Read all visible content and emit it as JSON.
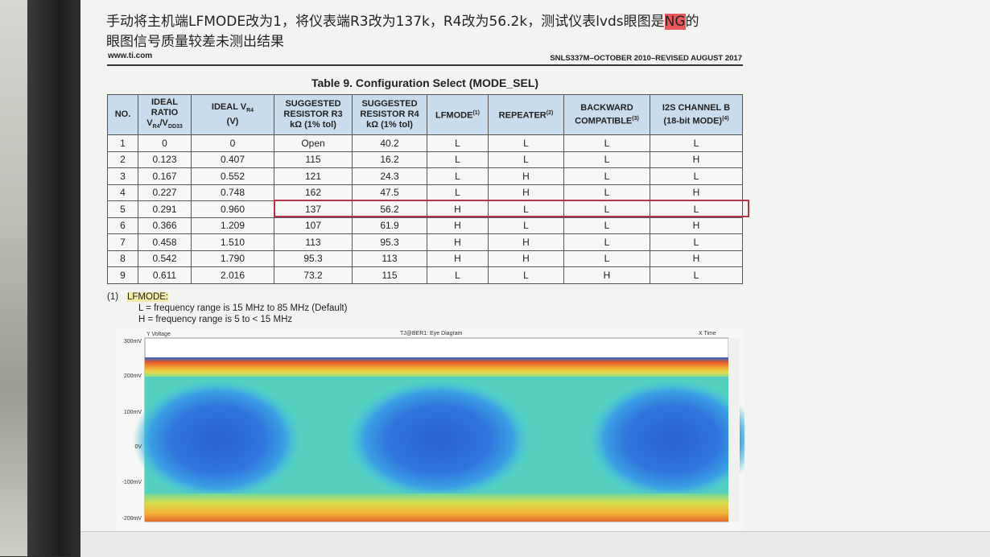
{
  "note": {
    "line1_a": "手动将主机端LFMODE改为1，将仪表端R3改为137k，R4改为56.2k，测试仪表lvds眼图是",
    "line1_ng": "NG",
    "line1_b": "的",
    "line2": "眼图信号质量较差未测出结果"
  },
  "header": {
    "left": "www.ti.com",
    "right": "SNLS337M–OCTOBER 2010–REVISED AUGUST 2017"
  },
  "table": {
    "title": "Table 9.  Configuration Select (MODE_SEL)",
    "headers": [
      [
        "NO."
      ],
      [
        "IDEAL",
        "RATIO",
        "V",
        "R4",
        "/V",
        "DD33"
      ],
      [
        "IDEAL V",
        "R4",
        "(V)"
      ],
      [
        "SUGGESTED",
        "RESISTOR R3",
        "kΩ (1% tol)"
      ],
      [
        "SUGGESTED",
        "RESISTOR R4",
        "kΩ (1% tol)"
      ],
      [
        "LFMODE",
        "(1)"
      ],
      [
        "REPEATER",
        "(2)"
      ],
      [
        "BACKWARD",
        "COMPATIBLE",
        "(3)"
      ],
      [
        "I2S CHANNEL B",
        "(18-bit MODE)",
        "(4)"
      ]
    ],
    "rows": [
      [
        "1",
        "0",
        "0",
        "Open",
        "40.2",
        "L",
        "L",
        "L",
        "L"
      ],
      [
        "2",
        "0.123",
        "0.407",
        "115",
        "16.2",
        "L",
        "L",
        "L",
        "H"
      ],
      [
        "3",
        "0.167",
        "0.552",
        "121",
        "24.3",
        "L",
        "H",
        "L",
        "L"
      ],
      [
        "4",
        "0.227",
        "0.748",
        "162",
        "47.5",
        "L",
        "H",
        "L",
        "H"
      ],
      [
        "5",
        "0.291",
        "0.960",
        "137",
        "56.2",
        "H",
        "L",
        "L",
        "L"
      ],
      [
        "6",
        "0.366",
        "1.209",
        "107",
        "61.9",
        "H",
        "L",
        "L",
        "H"
      ],
      [
        "7",
        "0.458",
        "1.510",
        "113",
        "95.3",
        "H",
        "H",
        "L",
        "L"
      ],
      [
        "8",
        "0.542",
        "1.790",
        "95.3",
        "113",
        "H",
        "H",
        "L",
        "H"
      ],
      [
        "9",
        "0.611",
        "2.016",
        "73.2",
        "115",
        "L",
        "L",
        "H",
        "L"
      ]
    ]
  },
  "footnote": {
    "number": "(1)",
    "term": "LFMODE:",
    "line1": "L = frequency range is 15 MHz to 85 MHz (Default)",
    "line2": "H = frequency range is 5 to < 15 MHz"
  },
  "eye": {
    "y_label": "Y Voltage",
    "title": "TJ@BER1: Eye Diagram",
    "x_label": "X Time",
    "y_ticks": [
      "300mV",
      "200mV",
      "100mV",
      "0V",
      "-100mV",
      "-200mV"
    ]
  }
}
